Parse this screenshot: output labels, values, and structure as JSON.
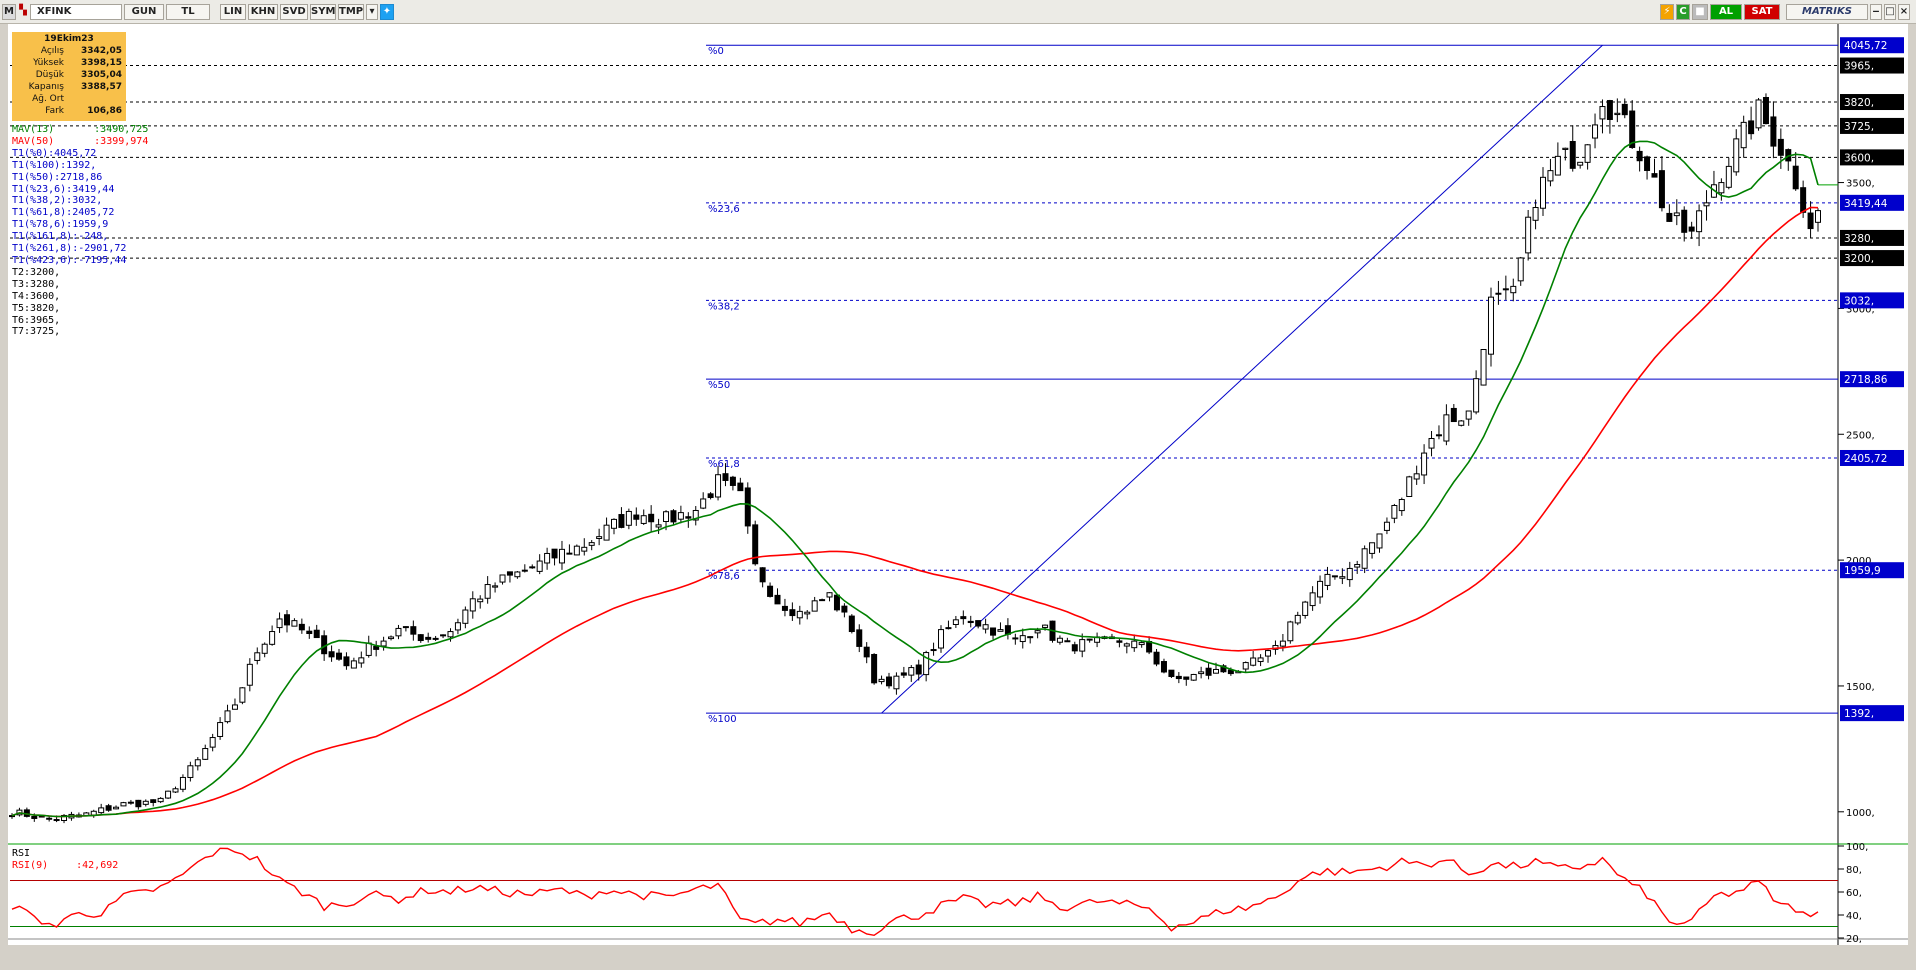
{
  "toolbar": {
    "symbol_prefix": "M",
    "symbol": "XFINK",
    "period": "GUN",
    "currency": "TL",
    "scale": "LIN",
    "buttons": [
      "KHN",
      "SVD",
      "SYM",
      "TMP"
    ],
    "buy_label": "AL",
    "sell_label": "SAT",
    "brand": "MATRIKS"
  },
  "colors": {
    "up_candle": "#ffffff",
    "down_candle": "#000000",
    "mav13": "#008000",
    "mav50": "#ff0000",
    "fib_lines": "#0000c8",
    "rsi_line": "#ff0000",
    "rsi_overbought": "#b40000",
    "rsi_oversold": "#008000",
    "buy_bg": "#00a000",
    "sell_bg": "#d00000",
    "price_tag_blue": "#0000cc",
    "price_tag_black": "#000000",
    "legend_bg": "#f8c04a"
  },
  "legend": {
    "date": "19Ekim23",
    "rows": [
      {
        "label": "Açılış",
        "value": "3342,05"
      },
      {
        "label": "Yüksek",
        "value": "3398,15"
      },
      {
        "label": "Düşük",
        "value": "3305,04"
      },
      {
        "label": "Kapanış",
        "value": "3388,57"
      },
      {
        "label": "Ağ. Ort",
        "value": ""
      },
      {
        "label": "Fark",
        "value": "106,86"
      }
    ]
  },
  "indicators": [
    {
      "name": "MAV(13)",
      "value": ":3490,725",
      "color": "#008000"
    },
    {
      "name": "MAV(50)",
      "value": ":3399,974",
      "color": "#ff0000"
    }
  ],
  "fib_list": [
    "T1(%0):4045,72",
    "T1(%100):1392,",
    "T1(%50):2718,86",
    "T1(%23,6):3419,44",
    "T1(%38,2):3032,",
    "T1(%61,8):2405,72",
    "T1(%78,6):1959,9",
    "T1(%161,8):-248,",
    "T1(%261,8):-2901,72",
    "T1(%423,6):-7195,44"
  ],
  "targets": [
    "T2:3200,",
    "T3:3280,",
    "T4:3600,",
    "T5:3820,",
    "T6:3965,",
    "T7:3725,"
  ],
  "rsi_label": {
    "name": "RSI",
    "series": "RSI(9)",
    "value": ":42,692"
  },
  "chart_data": {
    "type": "candlestick",
    "price_axis": {
      "ticks": [
        1000,
        1500,
        2000,
        2500,
        3000,
        3500
      ],
      "tick_labels": [
        "1000,",
        "1500,",
        "2000,",
        "2500,",
        "3000,",
        "3500,"
      ],
      "ylim": [
        880,
        4130
      ]
    },
    "fib_levels": [
      {
        "label": "%0",
        "value": 4045.72
      },
      {
        "label": "%23,6",
        "value": 3419.44
      },
      {
        "label": "%38,2",
        "value": 3032
      },
      {
        "label": "%50",
        "value": 2718.86
      },
      {
        "label": "%61,8",
        "value": 2405.72
      },
      {
        "label": "%78,6",
        "value": 1959.9
      },
      {
        "label": "%100",
        "value": 1392
      }
    ],
    "target_levels": [
      3200,
      3280,
      3600,
      3820,
      3965,
      3725
    ],
    "price_tags": [
      {
        "text": "4045,72",
        "value": 4045.72,
        "style": "blue"
      },
      {
        "text": "3965,",
        "value": 3965,
        "style": "black"
      },
      {
        "text": "3820,",
        "value": 3820,
        "style": "black"
      },
      {
        "text": "3725,",
        "value": 3725,
        "style": "black"
      },
      {
        "text": "3600,",
        "value": 3600,
        "style": "black"
      },
      {
        "text": "3419,44",
        "value": 3419.44,
        "style": "blue"
      },
      {
        "text": "3280,",
        "value": 3280,
        "style": "black"
      },
      {
        "text": "3200,",
        "value": 3200,
        "style": "black"
      },
      {
        "text": "3032,",
        "value": 3032,
        "style": "blue"
      },
      {
        "text": "2718,86",
        "value": 2718.86,
        "style": "blue"
      },
      {
        "text": "2405,72",
        "value": 2405.72,
        "style": "blue"
      },
      {
        "text": "1959,9",
        "value": 1959.9,
        "style": "blue"
      },
      {
        "text": "1392,",
        "value": 1392,
        "style": "blue"
      }
    ],
    "close_anchors": [
      [
        0,
        1000
      ],
      [
        5,
        970
      ],
      [
        10,
        990
      ],
      [
        15,
        1030
      ],
      [
        20,
        1040
      ],
      [
        25,
        1200
      ],
      [
        30,
        1430
      ],
      [
        33,
        1640
      ],
      [
        36,
        1770
      ],
      [
        39,
        1720
      ],
      [
        42,
        1650
      ],
      [
        45,
        1580
      ],
      [
        48,
        1650
      ],
      [
        52,
        1720
      ],
      [
        56,
        1690
      ],
      [
        59,
        1720
      ],
      [
        62,
        1840
      ],
      [
        66,
        1920
      ],
      [
        70,
        1970
      ],
      [
        74,
        2030
      ],
      [
        77,
        2060
      ],
      [
        80,
        2120
      ],
      [
        84,
        2190
      ],
      [
        88,
        2160
      ],
      [
        92,
        2200
      ],
      [
        95,
        2310
      ],
      [
        98,
        2250
      ],
      [
        100,
        1970
      ],
      [
        103,
        1840
      ],
      [
        106,
        1790
      ],
      [
        110,
        1860
      ],
      [
        113,
        1730
      ],
      [
        116,
        1530
      ],
      [
        119,
        1520
      ],
      [
        122,
        1570
      ],
      [
        125,
        1700
      ],
      [
        128,
        1780
      ],
      [
        131,
        1740
      ],
      [
        135,
        1680
      ],
      [
        138,
        1740
      ],
      [
        142,
        1660
      ],
      [
        146,
        1670
      ],
      [
        150,
        1680
      ],
      [
        153,
        1640
      ],
      [
        156,
        1520
      ],
      [
        159,
        1540
      ],
      [
        163,
        1560
      ],
      [
        166,
        1570
      ],
      [
        170,
        1640
      ],
      [
        173,
        1800
      ],
      [
        176,
        1900
      ],
      [
        180,
        1970
      ],
      [
        184,
        2100
      ],
      [
        187,
        2250
      ],
      [
        190,
        2440
      ],
      [
        193,
        2560
      ],
      [
        196,
        2580
      ],
      [
        199,
        3020
      ],
      [
        202,
        3050
      ],
      [
        205,
        3450
      ],
      [
        208,
        3580
      ],
      [
        211,
        3620
      ],
      [
        214,
        3850
      ],
      [
        217,
        3720
      ],
      [
        220,
        3580
      ],
      [
        223,
        3350
      ],
      [
        226,
        3290
      ],
      [
        229,
        3500
      ],
      [
        232,
        3640
      ],
      [
        235,
        3780
      ],
      [
        238,
        3640
      ],
      [
        240,
        3510
      ],
      [
        242,
        3340
      ],
      [
        243,
        3388.57
      ]
    ],
    "mav13_last": 3490.725,
    "mav50_last": 3399.974,
    "rsi": {
      "ticks": [
        20,
        40,
        60,
        80,
        100
      ],
      "tick_labels": [
        "20,",
        "40,",
        "60,",
        "80,",
        "100,"
      ],
      "ylim": [
        20,
        100
      ],
      "overbought": 70,
      "oversold": 30,
      "anchors": [
        [
          0,
          48
        ],
        [
          3,
          38
        ],
        [
          6,
          30
        ],
        [
          9,
          44
        ],
        [
          12,
          40
        ],
        [
          15,
          56
        ],
        [
          18,
          60
        ],
        [
          21,
          66
        ],
        [
          24,
          80
        ],
        [
          27,
          94
        ],
        [
          30,
          97
        ],
        [
          33,
          88
        ],
        [
          36,
          70
        ],
        [
          39,
          60
        ],
        [
          42,
          48
        ],
        [
          45,
          50
        ],
        [
          48,
          58
        ],
        [
          52,
          54
        ],
        [
          56,
          62
        ],
        [
          59,
          60
        ],
        [
          62,
          64
        ],
        [
          66,
          60
        ],
        [
          70,
          58
        ],
        [
          74,
          62
        ],
        [
          77,
          56
        ],
        [
          80,
          62
        ],
        [
          84,
          58
        ],
        [
          88,
          55
        ],
        [
          92,
          62
        ],
        [
          95,
          66
        ],
        [
          98,
          35
        ],
        [
          100,
          32
        ],
        [
          103,
          36
        ],
        [
          106,
          33
        ],
        [
          110,
          42
        ],
        [
          113,
          28
        ],
        [
          116,
          26
        ],
        [
          119,
          36
        ],
        [
          122,
          40
        ],
        [
          125,
          48
        ],
        [
          128,
          54
        ],
        [
          131,
          49
        ],
        [
          135,
          50
        ],
        [
          138,
          56
        ],
        [
          142,
          46
        ],
        [
          146,
          52
        ],
        [
          150,
          49
        ],
        [
          153,
          46
        ],
        [
          156,
          30
        ],
        [
          159,
          34
        ],
        [
          163,
          44
        ],
        [
          166,
          46
        ],
        [
          170,
          55
        ],
        [
          173,
          70
        ],
        [
          176,
          78
        ],
        [
          180,
          77
        ],
        [
          184,
          81
        ],
        [
          187,
          86
        ],
        [
          190,
          84
        ],
        [
          193,
          88
        ],
        [
          196,
          76
        ],
        [
          199,
          84
        ],
        [
          202,
          82
        ],
        [
          205,
          86
        ],
        [
          208,
          80
        ],
        [
          211,
          82
        ],
        [
          214,
          88
        ],
        [
          217,
          70
        ],
        [
          220,
          58
        ],
        [
          223,
          33
        ],
        [
          226,
          34
        ],
        [
          229,
          56
        ],
        [
          232,
          60
        ],
        [
          235,
          68
        ],
        [
          238,
          48
        ],
        [
          240,
          46
        ],
        [
          242,
          36
        ],
        [
          243,
          42.692
        ]
      ]
    }
  }
}
